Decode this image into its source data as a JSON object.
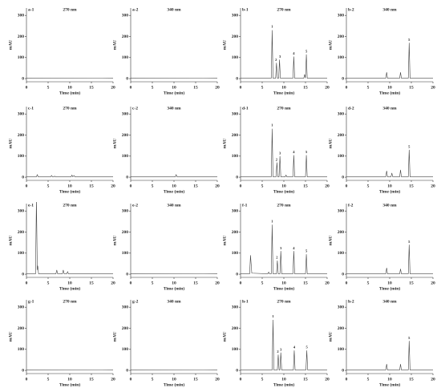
{
  "chart_data": [
    {
      "type": "line",
      "label": "a-1",
      "subtitle": "270 nm",
      "y_label": "mAU",
      "x_label": "Time (min)",
      "color": "#444444",
      "xlim": [
        0,
        20
      ],
      "xticks": [
        0,
        5,
        10,
        15,
        20
      ],
      "ylim": [
        -15,
        335
      ],
      "yticks": [
        0,
        100,
        200,
        300
      ],
      "x": [
        0,
        20
      ],
      "values": [
        3,
        2
      ],
      "annotations": []
    },
    {
      "type": "line",
      "label": "a-2",
      "subtitle": "340 nm",
      "y_label": "mAU",
      "x_label": "Time (min)",
      "color": "#444444",
      "xlim": [
        0,
        20
      ],
      "xticks": [
        0,
        5,
        10,
        15,
        20
      ],
      "ylim": [
        -15,
        335
      ],
      "yticks": [
        0,
        100,
        200,
        300
      ],
      "x": [
        0,
        20
      ],
      "values": [
        3,
        2
      ],
      "annotations": []
    },
    {
      "type": "line",
      "label": "b-1",
      "subtitle": "270 nm",
      "y_label": "mAU",
      "x_label": "Time (min)",
      "color": "#444444",
      "xlim": [
        0,
        20
      ],
      "xticks": [
        0,
        5,
        10,
        15,
        20
      ],
      "ylim": [
        -15,
        335
      ],
      "yticks": [
        0,
        100,
        200,
        300
      ],
      "x": [
        0,
        7.1,
        7.3,
        7.5,
        8.1,
        8.3,
        8.5,
        8.8,
        9,
        9.2,
        12.1,
        12.3,
        12.5,
        14.6,
        14.8,
        15,
        15.2,
        15.4,
        20
      ],
      "values": [
        2,
        2,
        230,
        2,
        2,
        75,
        2,
        2,
        90,
        2,
        2,
        105,
        2,
        2,
        20,
        2,
        115,
        2,
        2
      ],
      "annotations": [
        {
          "text": "1",
          "x": 7.3,
          "y": 245
        },
        {
          "text": "2",
          "x": 8.2,
          "y": 88
        },
        {
          "text": "3",
          "x": 9.1,
          "y": 103
        },
        {
          "text": "4",
          "x": 12.3,
          "y": 118
        },
        {
          "text": "5",
          "x": 15.2,
          "y": 128
        }
      ]
    },
    {
      "type": "line",
      "label": "b-2",
      "subtitle": "340 nm",
      "y_label": "mAU",
      "x_label": "Time (min)",
      "color": "#444444",
      "xlim": [
        0,
        20
      ],
      "xticks": [
        0,
        5,
        10,
        15,
        20
      ],
      "ylim": [
        -15,
        335
      ],
      "yticks": [
        0,
        100,
        200,
        300
      ],
      "x": [
        0,
        9.1,
        9.3,
        9.5,
        12.3,
        12.5,
        12.7,
        14.3,
        14.5,
        14.7,
        20
      ],
      "values": [
        2,
        2,
        30,
        2,
        2,
        30,
        2,
        2,
        170,
        2,
        2
      ],
      "annotations": [
        {
          "text": "5",
          "x": 14.5,
          "y": 183
        }
      ]
    },
    {
      "type": "line",
      "label": "c-1",
      "subtitle": "270 nm",
      "y_label": "mAU",
      "x_label": "Time (min)",
      "color": "#444444",
      "xlim": [
        0,
        20
      ],
      "xticks": [
        0,
        5,
        10,
        15,
        20
      ],
      "ylim": [
        -15,
        335
      ],
      "yticks": [
        0,
        100,
        200,
        300
      ],
      "x": [
        0,
        2.3,
        2.5,
        2.7,
        5.6,
        5.8,
        6,
        6.3,
        6.5,
        6.7,
        10.3,
        10.5,
        10.7,
        11,
        11.2,
        20
      ],
      "values": [
        2,
        2,
        12,
        2,
        2,
        8,
        2,
        2,
        5,
        2,
        2,
        10,
        2,
        8,
        2,
        2
      ],
      "annotations": []
    },
    {
      "type": "line",
      "label": "c-2",
      "subtitle": "340 nm",
      "y_label": "mAU",
      "x_label": "Time (min)",
      "color": "#444444",
      "xlim": [
        0,
        20
      ],
      "xticks": [
        0,
        5,
        10,
        15,
        20
      ],
      "ylim": [
        -15,
        335
      ],
      "yticks": [
        0,
        100,
        200,
        300
      ],
      "x": [
        0,
        10.3,
        10.5,
        10.7,
        20
      ],
      "values": [
        2,
        2,
        12,
        2,
        2
      ],
      "annotations": []
    },
    {
      "type": "line",
      "label": "d-1",
      "subtitle": "270 nm",
      "y_label": "mAU",
      "x_label": "Time (min)",
      "color": "#444444",
      "xlim": [
        0,
        20
      ],
      "xticks": [
        0,
        5,
        10,
        15,
        20
      ],
      "ylim": [
        -15,
        335
      ],
      "yticks": [
        0,
        100,
        200,
        300
      ],
      "x": [
        0,
        7.1,
        7.3,
        7.5,
        8.2,
        8.4,
        8.6,
        8.9,
        9.1,
        9.3,
        10.3,
        10.5,
        10.7,
        12.1,
        12.3,
        12.5,
        15,
        15.2,
        15.4,
        20
      ],
      "values": [
        2,
        2,
        230,
        2,
        2,
        70,
        2,
        2,
        100,
        2,
        2,
        10,
        2,
        2,
        105,
        2,
        2,
        105,
        2,
        2
      ],
      "annotations": [
        {
          "text": "1",
          "x": 7.3,
          "y": 245
        },
        {
          "text": "2",
          "x": 8.3,
          "y": 83
        },
        {
          "text": "3",
          "x": 9.1,
          "y": 113
        },
        {
          "text": "4",
          "x": 12.3,
          "y": 118
        },
        {
          "text": "5",
          "x": 15.2,
          "y": 118
        }
      ]
    },
    {
      "type": "line",
      "label": "d-2",
      "subtitle": "340 nm",
      "y_label": "mAU",
      "x_label": "Time (min)",
      "color": "#444444",
      "xlim": [
        0,
        20
      ],
      "xticks": [
        0,
        5,
        10,
        15,
        20
      ],
      "ylim": [
        -15,
        335
      ],
      "yticks": [
        0,
        100,
        200,
        300
      ],
      "x": [
        0,
        9.1,
        9.3,
        9.5,
        10.3,
        10.5,
        10.7,
        12.3,
        12.5,
        12.7,
        14.3,
        14.5,
        14.7,
        20
      ],
      "values": [
        2,
        2,
        30,
        2,
        2,
        20,
        2,
        2,
        35,
        2,
        2,
        130,
        2,
        2
      ],
      "annotations": [
        {
          "text": "5",
          "x": 14.5,
          "y": 143
        }
      ]
    },
    {
      "type": "line",
      "label": "e-1",
      "subtitle": "270 nm",
      "y_label": "mAU",
      "x_label": "Time (min)",
      "color": "#444444",
      "xlim": [
        0,
        20
      ],
      "xticks": [
        0,
        5,
        10,
        15,
        20
      ],
      "ylim": [
        -15,
        335
      ],
      "yticks": [
        0,
        100,
        200,
        300
      ],
      "x": [
        0,
        2.1,
        2.3,
        2.5,
        2.6,
        2.8,
        6.8,
        7,
        7.2,
        8.3,
        8.5,
        8.7,
        9.3,
        9.5,
        9.7,
        20
      ],
      "values": [
        2,
        2,
        360,
        20,
        40,
        2,
        2,
        20,
        2,
        2,
        20,
        2,
        2,
        12,
        2,
        2
      ],
      "annotations": []
    },
    {
      "type": "line",
      "label": "e-2",
      "subtitle": "340 nm",
      "y_label": "mAU",
      "x_label": "Time (min)",
      "color": "#444444",
      "xlim": [
        0,
        20
      ],
      "xticks": [
        0,
        5,
        10,
        15,
        20
      ],
      "ylim": [
        -15,
        335
      ],
      "yticks": [
        0,
        100,
        200,
        300
      ],
      "x": [
        0,
        20
      ],
      "values": [
        3,
        2
      ],
      "annotations": []
    },
    {
      "type": "line",
      "label": "f-1",
      "subtitle": "270 nm",
      "y_label": "mAU",
      "x_label": "Time (min)",
      "color": "#444444",
      "xlim": [
        0,
        20
      ],
      "xticks": [
        0,
        5,
        10,
        15,
        20
      ],
      "ylim": [
        -15,
        335
      ],
      "yticks": [
        0,
        100,
        200,
        300
      ],
      "x": [
        0,
        2.1,
        2.3,
        2.6,
        6.3,
        6.5,
        6.7,
        7.1,
        7.3,
        7.5,
        8.3,
        8.5,
        8.7,
        9.1,
        9.3,
        9.5,
        12.1,
        12.3,
        12.5,
        15,
        15.2,
        15.4,
        20
      ],
      "values": [
        2,
        2,
        90,
        5,
        2,
        10,
        2,
        2,
        235,
        2,
        2,
        65,
        2,
        2,
        110,
        2,
        2,
        110,
        2,
        2,
        95,
        2,
        2
      ],
      "annotations": [
        {
          "text": "1",
          "x": 7.3,
          "y": 250
        },
        {
          "text": "2",
          "x": 8.4,
          "y": 78
        },
        {
          "text": "3",
          "x": 9.3,
          "y": 123
        },
        {
          "text": "4",
          "x": 12.3,
          "y": 123
        },
        {
          "text": "5",
          "x": 15.2,
          "y": 108
        }
      ]
    },
    {
      "type": "line",
      "label": "f-2",
      "subtitle": "340 nm",
      "y_label": "mAU",
      "x_label": "Time (min)",
      "color": "#444444",
      "xlim": [
        0,
        20
      ],
      "xticks": [
        0,
        5,
        10,
        15,
        20
      ],
      "ylim": [
        -15,
        335
      ],
      "yticks": [
        0,
        100,
        200,
        300
      ],
      "x": [
        0,
        9.1,
        9.3,
        9.5,
        12.3,
        12.5,
        12.7,
        14.3,
        14.5,
        14.7,
        20
      ],
      "values": [
        2,
        2,
        30,
        2,
        2,
        25,
        2,
        2,
        140,
        2,
        2
      ],
      "annotations": [
        {
          "text": "5",
          "x": 14.5,
          "y": 153
        }
      ]
    },
    {
      "type": "line",
      "label": "g-1",
      "subtitle": "270 nm",
      "y_label": "mAU",
      "x_label": "Time (min)",
      "color": "#444444",
      "xlim": [
        0,
        20
      ],
      "xticks": [
        0,
        5,
        10,
        15,
        20
      ],
      "ylim": [
        -15,
        335
      ],
      "yticks": [
        0,
        100,
        200,
        300
      ],
      "x": [
        0,
        20
      ],
      "values": [
        3,
        2
      ],
      "annotations": []
    },
    {
      "type": "line",
      "label": "g-2",
      "subtitle": "340 nm",
      "y_label": "mAU",
      "x_label": "Time (min)",
      "color": "#444444",
      "xlim": [
        0,
        20
      ],
      "xticks": [
        0,
        5,
        10,
        15,
        20
      ],
      "ylim": [
        -15,
        335
      ],
      "yticks": [
        0,
        100,
        200,
        300
      ],
      "x": [
        0,
        20
      ],
      "values": [
        3,
        2
      ],
      "annotations": []
    },
    {
      "type": "line",
      "label": "h-1",
      "subtitle": "270 nm",
      "y_label": "mAU",
      "x_label": "Time (min)",
      "color": "#444444",
      "xlim": [
        0,
        20
      ],
      "xticks": [
        0,
        5,
        10,
        15,
        20
      ],
      "ylim": [
        -15,
        335
      ],
      "yticks": [
        0,
        100,
        200,
        300
      ],
      "x": [
        0,
        7.3,
        7.5,
        7.7,
        8.5,
        8.7,
        8.9,
        9.1,
        9.3,
        9.5,
        12.2,
        12.4,
        12.6,
        15.1,
        15.3,
        15.5,
        20
      ],
      "values": [
        2,
        2,
        240,
        2,
        2,
        75,
        2,
        2,
        85,
        2,
        2,
        95,
        2,
        2,
        95,
        2,
        2
      ],
      "annotations": [
        {
          "text": "1",
          "x": 7.5,
          "y": 255
        },
        {
          "text": "2",
          "x": 8.6,
          "y": 88
        },
        {
          "text": "3",
          "x": 9.3,
          "y": 98
        },
        {
          "text": "4",
          "x": 12.4,
          "y": 108
        },
        {
          "text": "5",
          "x": 15.3,
          "y": 108
        }
      ]
    },
    {
      "type": "line",
      "label": "h-2",
      "subtitle": "340 nm",
      "y_label": "mAU",
      "x_label": "Time (min)",
      "color": "#444444",
      "xlim": [
        0,
        20
      ],
      "xticks": [
        0,
        5,
        10,
        15,
        20
      ],
      "ylim": [
        -15,
        335
      ],
      "yticks": [
        0,
        100,
        200,
        300
      ],
      "x": [
        0,
        9.1,
        9.3,
        9.5,
        12.3,
        12.5,
        12.7,
        14.3,
        14.5,
        14.7,
        20
      ],
      "values": [
        2,
        2,
        30,
        2,
        2,
        30,
        2,
        2,
        140,
        2,
        2
      ],
      "annotations": [
        {
          "text": "5",
          "x": 14.5,
          "y": 153
        }
      ]
    }
  ]
}
